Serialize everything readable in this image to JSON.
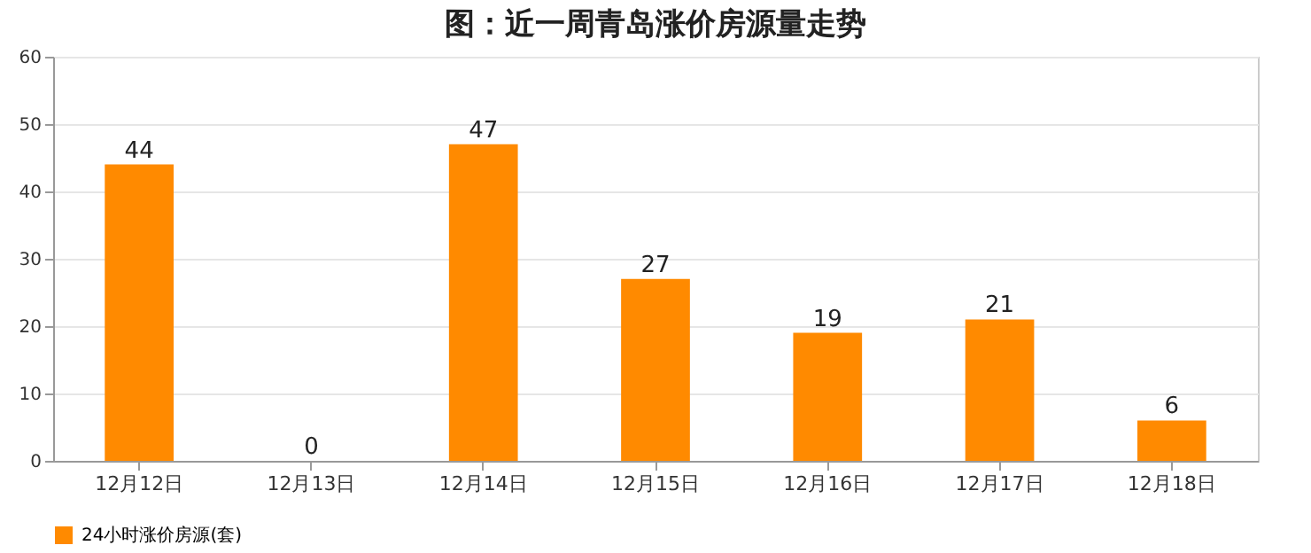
{
  "chart_data": {
    "type": "bar",
    "title": "图：近一周青岛涨价房源量走势",
    "categories": [
      "12月12日",
      "12月13日",
      "12月14日",
      "12月15日",
      "12月16日",
      "12月17日",
      "12月18日"
    ],
    "series": [
      {
        "name": "24小时涨价房源(套)",
        "color": "#ff8a00",
        "values": [
          44,
          0,
          47,
          27,
          19,
          21,
          6
        ]
      }
    ],
    "ylim": [
      0,
      60
    ],
    "yticks": [
      0,
      10,
      20,
      30,
      40,
      50,
      60
    ],
    "grid": "y",
    "legend": "bottom",
    "data_labels": true
  }
}
